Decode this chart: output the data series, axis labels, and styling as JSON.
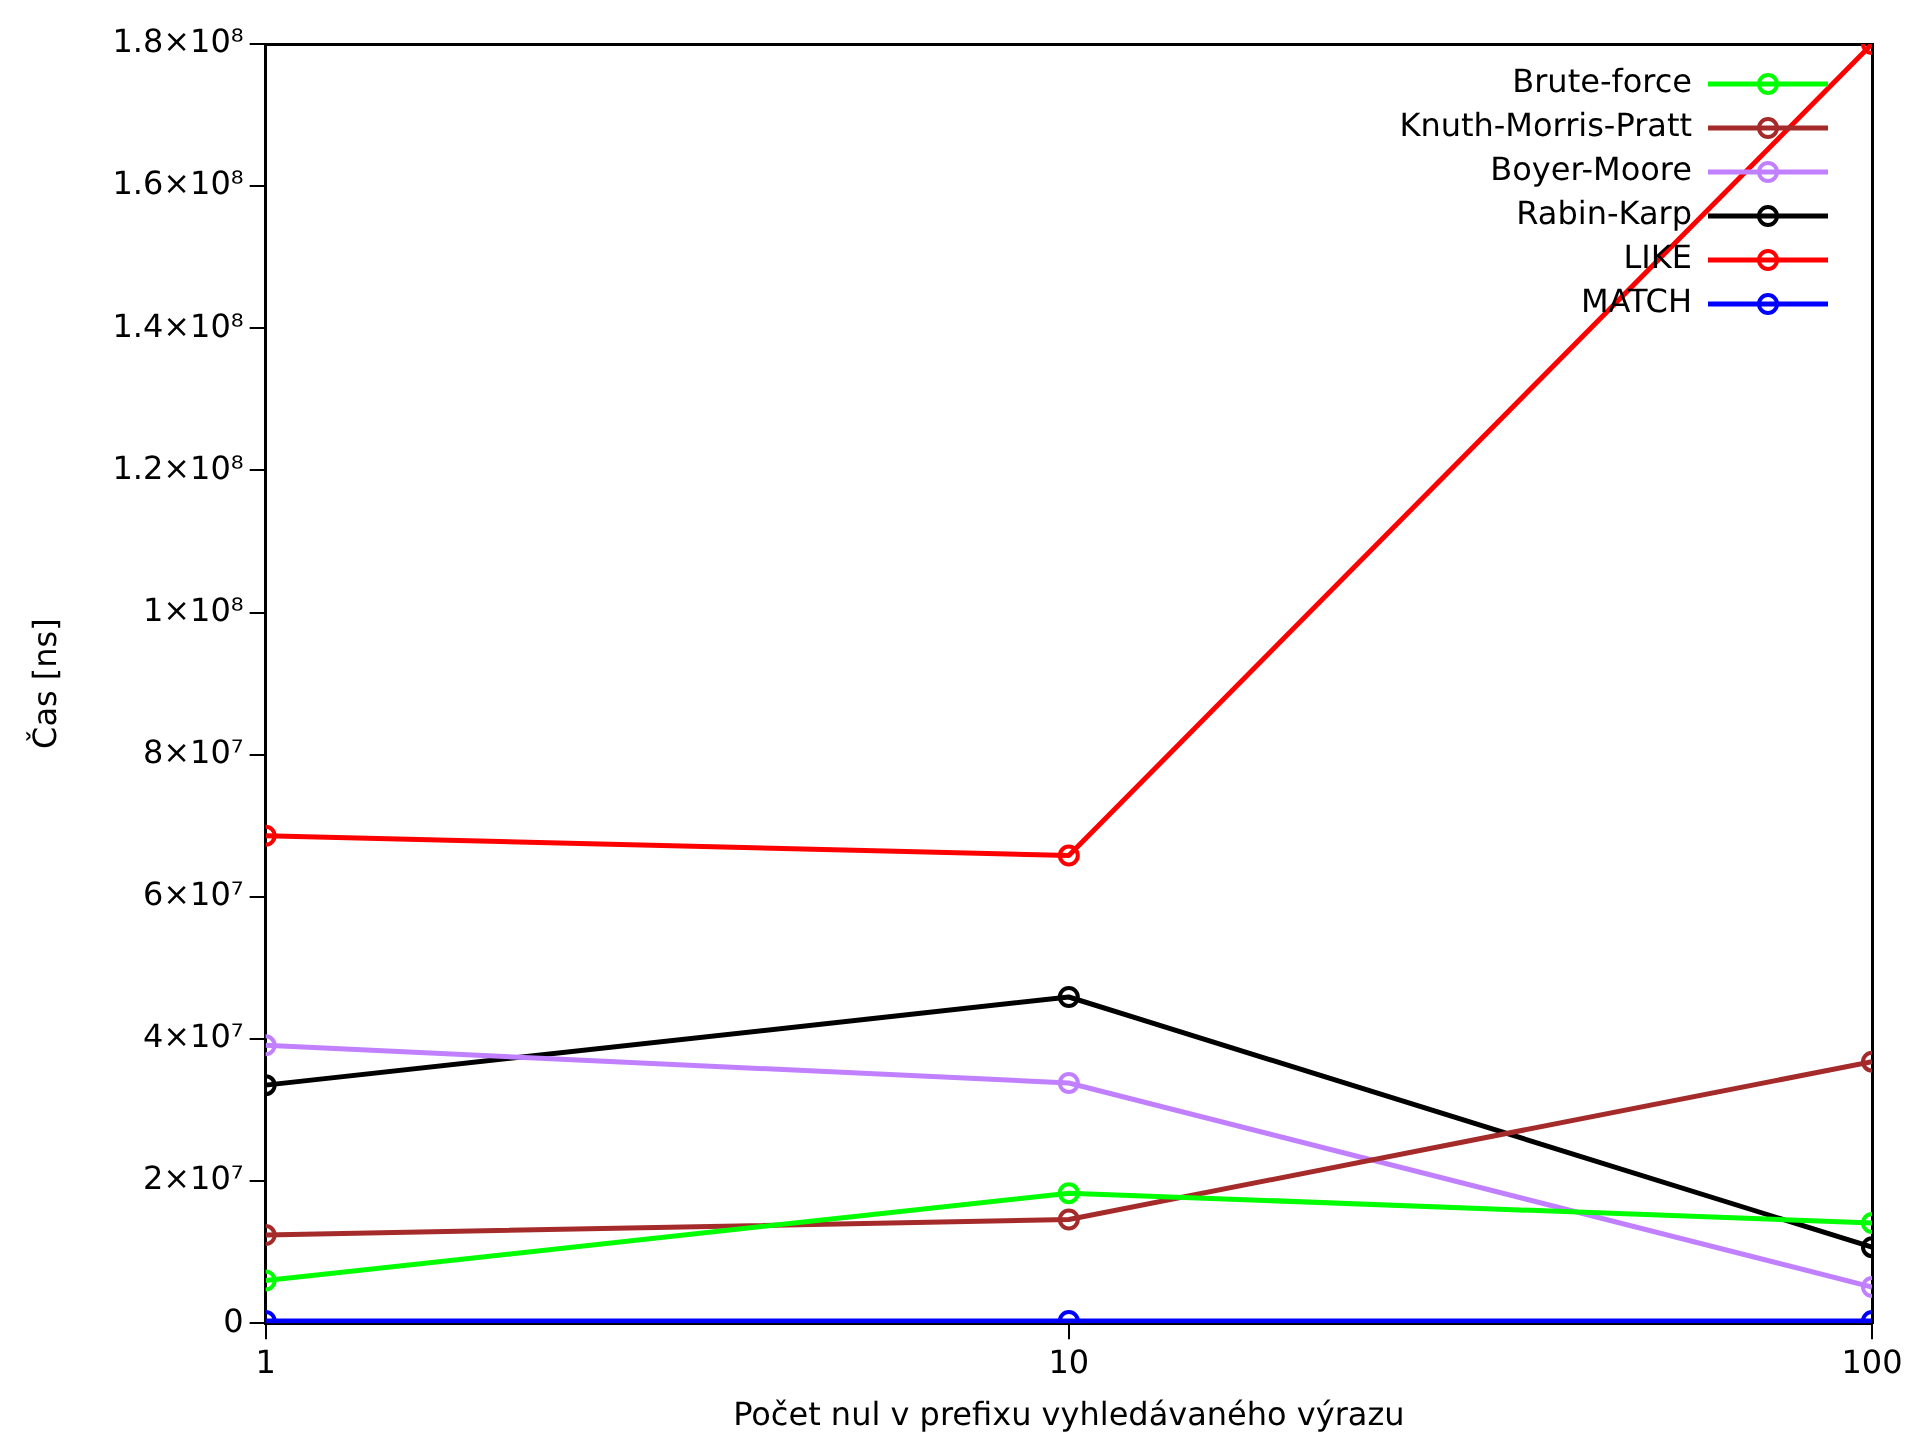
{
  "chart_data": {
    "type": "line",
    "xlabel": "Počet nul v prefixu vyhledávaného výrazu",
    "ylabel": "Čas [ns]",
    "x": [
      1,
      10,
      100
    ],
    "log": "x",
    "xlim": [
      1,
      100
    ],
    "xticks": [
      1,
      10,
      100
    ],
    "ylim": [
      0,
      180000000
    ],
    "yticks": [
      {
        "value": 0,
        "label": "0"
      },
      {
        "value": 20000000,
        "label": "2×10⁷"
      },
      {
        "value": 40000000,
        "label": "4×10⁷"
      },
      {
        "value": 60000000,
        "label": "6×10⁷"
      },
      {
        "value": 80000000,
        "label": "8×10⁷"
      },
      {
        "value": 100000000,
        "label": "1×10⁸"
      },
      {
        "value": 120000000,
        "label": "1.2×10⁸"
      },
      {
        "value": 140000000,
        "label": "1.4×10⁸"
      },
      {
        "value": 160000000,
        "label": "1.6×10⁸"
      },
      {
        "value": 180000000,
        "label": "1.8×10⁸"
      }
    ],
    "grid": false,
    "legend": "top right",
    "marker": "circle",
    "line_style": "solid",
    "series": [
      {
        "name": "Brute-force",
        "color": "#00ff00",
        "values": [
          6000000,
          18300000,
          14100000
        ]
      },
      {
        "name": "Knuth-Morris-Pratt",
        "color": "#a52a2a",
        "values": [
          12400000,
          14600000,
          36800000
        ]
      },
      {
        "name": "Boyer-Moore",
        "color": "#c080ff",
        "values": [
          39100000,
          33800000,
          5100000
        ]
      },
      {
        "name": "Rabin-Karp",
        "color": "#000000",
        "values": [
          33500000,
          45900000,
          10700000
        ]
      },
      {
        "name": "LIKE",
        "color": "#ff0000",
        "values": [
          68600000,
          65800000,
          180000000
        ]
      },
      {
        "name": "MATCH",
        "color": "#0000ff",
        "values": [
          300000,
          300000,
          300000
        ]
      }
    ]
  }
}
